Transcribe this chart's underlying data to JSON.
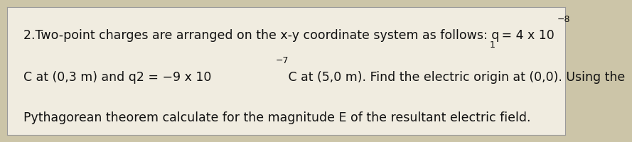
{
  "background_color": "#ccc5a8",
  "box_color": "#f0ece0",
  "box_edge_color": "#999999",
  "font_size": 12.5,
  "font_family": "DejaVu Sans",
  "text_color": "#111111",
  "line1_main": "2.Two-point charges are arranged on the x-y coordinate system as follows: q",
  "line1_sub": "1",
  "line1_mid": " = 4 x 10",
  "line1_sup": "−8",
  "line2_a": "C at (0,3 m) and q2 = −9 x 10",
  "line2_sup": "−7",
  "line2_b": " C at (5,0 m). Find the electric origin at (0,0). Using the",
  "line3": "Pythagorean theorem calculate for the magnitude E of the resultant electric field."
}
